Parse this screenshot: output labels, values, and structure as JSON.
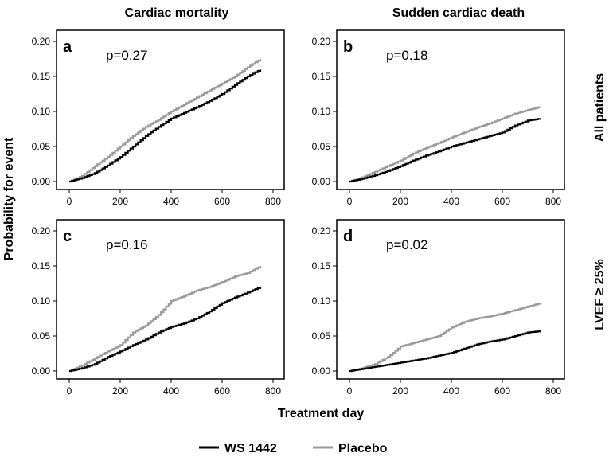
{
  "figure": {
    "column_titles": [
      "Cardiac mortality",
      "Sudden cardiac death"
    ],
    "row_titles": [
      "All patients",
      "LVEF ≥ 25%"
    ],
    "ylabel": "Probability for event",
    "xlabel": "Treatment day",
    "legend": [
      {
        "name": "WS 1442",
        "color": "#000000"
      },
      {
        "name": "Placebo",
        "color": "#999999"
      }
    ]
  },
  "chart_data": [
    {
      "type": "line",
      "panel": "a",
      "annotation": "p=0.27",
      "xlim": [
        0,
        800
      ],
      "ylim": [
        0,
        0.2
      ],
      "xticks": [
        "0",
        "200",
        "400",
        "600",
        "800"
      ],
      "yticks": [
        "0.00",
        "0.05",
        "0.10",
        "0.15",
        "0.20"
      ],
      "series": [
        {
          "name": "WS 1442",
          "x": [
            0,
            50,
            100,
            150,
            200,
            250,
            300,
            350,
            400,
            450,
            500,
            550,
            600,
            650,
            700,
            750
          ],
          "y": [
            0,
            0.005,
            0.012,
            0.023,
            0.035,
            0.05,
            0.065,
            0.078,
            0.09,
            0.098,
            0.106,
            0.115,
            0.125,
            0.138,
            0.15,
            0.16
          ]
        },
        {
          "name": "Placebo",
          "x": [
            0,
            50,
            100,
            150,
            200,
            250,
            300,
            350,
            400,
            450,
            500,
            550,
            600,
            650,
            700,
            750
          ],
          "y": [
            0,
            0.008,
            0.022,
            0.035,
            0.05,
            0.065,
            0.078,
            0.088,
            0.1,
            0.11,
            0.12,
            0.13,
            0.14,
            0.15,
            0.163,
            0.175
          ]
        }
      ]
    },
    {
      "type": "line",
      "panel": "b",
      "annotation": "p=0.18",
      "xlim": [
        0,
        800
      ],
      "ylim": [
        0,
        0.2
      ],
      "xticks": [
        "0",
        "200",
        "400",
        "600",
        "800"
      ],
      "yticks": [
        "0.00",
        "0.05",
        "0.10",
        "0.15",
        "0.20"
      ],
      "series": [
        {
          "name": "WS 1442",
          "x": [
            0,
            50,
            100,
            150,
            200,
            250,
            300,
            350,
            400,
            450,
            500,
            550,
            600,
            650,
            700,
            750
          ],
          "y": [
            0,
            0.004,
            0.009,
            0.015,
            0.022,
            0.03,
            0.037,
            0.043,
            0.05,
            0.055,
            0.06,
            0.065,
            0.07,
            0.08,
            0.087,
            0.09
          ]
        },
        {
          "name": "Placebo",
          "x": [
            0,
            50,
            100,
            150,
            200,
            250,
            300,
            350,
            400,
            450,
            500,
            550,
            600,
            650,
            700,
            750
          ],
          "y": [
            0,
            0.006,
            0.014,
            0.022,
            0.03,
            0.04,
            0.048,
            0.055,
            0.063,
            0.07,
            0.077,
            0.083,
            0.09,
            0.097,
            0.102,
            0.107
          ]
        }
      ]
    },
    {
      "type": "line",
      "panel": "c",
      "annotation": "p=0.16",
      "xlim": [
        0,
        800
      ],
      "ylim": [
        0,
        0.2
      ],
      "xticks": [
        "0",
        "200",
        "400",
        "600",
        "800"
      ],
      "yticks": [
        "0.00",
        "0.05",
        "0.10",
        "0.15",
        "0.20"
      ],
      "series": [
        {
          "name": "WS 1442",
          "x": [
            0,
            50,
            100,
            150,
            200,
            250,
            300,
            350,
            400,
            450,
            500,
            550,
            600,
            650,
            700,
            750
          ],
          "y": [
            0,
            0.004,
            0.01,
            0.02,
            0.028,
            0.037,
            0.045,
            0.055,
            0.063,
            0.068,
            0.075,
            0.085,
            0.097,
            0.105,
            0.112,
            0.12
          ]
        },
        {
          "name": "Placebo",
          "x": [
            0,
            50,
            100,
            150,
            200,
            250,
            300,
            350,
            400,
            450,
            500,
            550,
            600,
            650,
            700,
            750
          ],
          "y": [
            0,
            0.008,
            0.018,
            0.028,
            0.037,
            0.055,
            0.065,
            0.08,
            0.1,
            0.107,
            0.115,
            0.12,
            0.127,
            0.135,
            0.14,
            0.15
          ]
        }
      ]
    },
    {
      "type": "line",
      "panel": "d",
      "annotation": "p=0.02",
      "xlim": [
        0,
        800
      ],
      "ylim": [
        0,
        0.2
      ],
      "xticks": [
        "0",
        "200",
        "400",
        "600",
        "800"
      ],
      "yticks": [
        "0.00",
        "0.05",
        "0.10",
        "0.15",
        "0.20"
      ],
      "series": [
        {
          "name": "WS 1442",
          "x": [
            0,
            50,
            100,
            150,
            200,
            250,
            300,
            350,
            400,
            450,
            500,
            550,
            600,
            650,
            700,
            750
          ],
          "y": [
            0,
            0.003,
            0.006,
            0.009,
            0.012,
            0.015,
            0.018,
            0.022,
            0.026,
            0.032,
            0.038,
            0.042,
            0.045,
            0.05,
            0.055,
            0.057
          ]
        },
        {
          "name": "Placebo",
          "x": [
            0,
            50,
            100,
            150,
            200,
            250,
            300,
            350,
            400,
            450,
            500,
            550,
            600,
            650,
            700,
            750
          ],
          "y": [
            0,
            0.004,
            0.01,
            0.02,
            0.035,
            0.04,
            0.045,
            0.05,
            0.062,
            0.07,
            0.075,
            0.078,
            0.082,
            0.087,
            0.092,
            0.097
          ]
        }
      ]
    }
  ]
}
